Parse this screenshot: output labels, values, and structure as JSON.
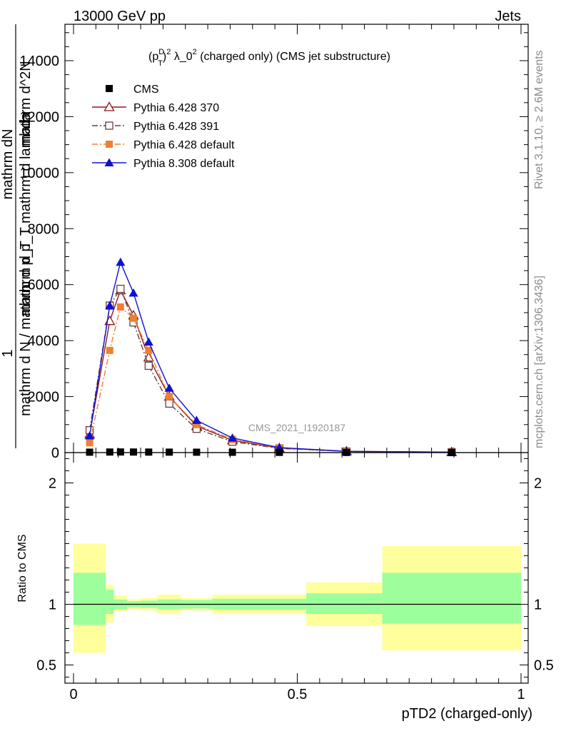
{
  "header": {
    "energy_label": "13000 GeV pp",
    "process_label": "Jets"
  },
  "side": {
    "rivet_label": "Rivet 3.1.10, ≥ 2.6M events",
    "source_label": "mcplots.cern.ch [arXiv:1306.3436]"
  },
  "watermark": "CMS_2021_I1920187",
  "chart_data": [
    {
      "type": "line",
      "title_parts": {
        "p": "(p",
        "sup_d": "D",
        "sub_t": "T",
        "close": ")",
        "sup_2": "2",
        "lambda": " λ_0",
        "sup_2b": "2",
        "rest": " (charged only) (CMS jet substructure)"
      },
      "ylabel_parts": {
        "one": "1",
        "frac1_num": "mathrm dN",
        "frac1_den": "mathrm d N / mathrm d p_T",
        "frac2_num": "mathrm d^2N",
        "frac2_den": "mathrm d p_T mathrm d lambda"
      },
      "xlim": [
        0,
        1
      ],
      "ylim": [
        0,
        15300
      ],
      "yticks": [
        {
          "value": 0,
          "label": "0"
        },
        {
          "value": 2000,
          "label": "2000"
        },
        {
          "value": 4000,
          "label": "4000"
        },
        {
          "value": 6000,
          "label": "6000"
        },
        {
          "value": 8000,
          "label": "8000"
        },
        {
          "value": 10000,
          "label": "10000"
        },
        {
          "value": 12000,
          "label": "12000"
        },
        {
          "value": 14000,
          "label": "14000"
        }
      ],
      "x": [
        0.036,
        0.081,
        0.105,
        0.134,
        0.168,
        0.214,
        0.275,
        0.355,
        0.46,
        0.61,
        0.845
      ],
      "series": [
        {
          "name": "CMS",
          "color": "#000000",
          "marker": "square-filled",
          "line": "none",
          "values": [
            15,
            20,
            22,
            20,
            18,
            16,
            14,
            12,
            8,
            5,
            3
          ]
        },
        {
          "name": "Pythia 6.428 370",
          "color": "#8b1a1a",
          "marker": "triangle-open",
          "line": "solid",
          "values": [
            650,
            4700,
            5800,
            4900,
            3400,
            2000,
            950,
            440,
            160,
            45,
            18
          ]
        },
        {
          "name": "Pythia 6.428 391",
          "color": "#6a3d3d",
          "marker": "square-open",
          "line": "dashdot",
          "values": [
            800,
            5250,
            5850,
            4650,
            3100,
            1750,
            850,
            390,
            150,
            40,
            15
          ]
        },
        {
          "name": "Pythia 6.428 default",
          "color": "#f08030",
          "marker": "square-filled",
          "line": "dashdot",
          "values": [
            350,
            3650,
            5200,
            4800,
            3650,
            2000,
            1000,
            470,
            170,
            45,
            15
          ]
        },
        {
          "name": "Pythia 8.308 default",
          "color": "#1010d0",
          "marker": "triangle-filled",
          "line": "solid",
          "values": [
            600,
            5250,
            6800,
            5700,
            3950,
            2300,
            1150,
            520,
            180,
            45,
            15
          ]
        }
      ]
    },
    {
      "type": "area",
      "ylabel": "Ratio to CMS",
      "xlabel": "pTD2 (charged-only)",
      "xlim": [
        0,
        1
      ],
      "ylim": [
        0.35,
        2.25
      ],
      "xticks": [
        {
          "value": 0,
          "label": "0"
        },
        {
          "value": 0.5,
          "label": "0.5"
        },
        {
          "value": 1,
          "label": "1"
        }
      ],
      "yticks": [
        {
          "value": 0.5,
          "label": "0.5"
        },
        {
          "value": 1,
          "label": "1"
        },
        {
          "value": 2,
          "label": "2"
        }
      ],
      "bins": [
        {
          "lo": 0.0,
          "hi": 0.072,
          "inner": [
            0.83,
            1.26
          ],
          "outer": [
            0.6,
            1.5
          ]
        },
        {
          "lo": 0.072,
          "hi": 0.09,
          "inner": [
            0.92,
            1.12
          ],
          "outer": [
            0.85,
            1.16
          ]
        },
        {
          "lo": 0.09,
          "hi": 0.12,
          "inner": [
            0.96,
            1.04
          ],
          "outer": [
            0.94,
            1.07
          ]
        },
        {
          "lo": 0.12,
          "hi": 0.149,
          "inner": [
            0.975,
            1.025
          ],
          "outer": [
            0.96,
            1.04
          ]
        },
        {
          "lo": 0.149,
          "hi": 0.188,
          "inner": [
            0.97,
            1.03
          ],
          "outer": [
            0.95,
            1.05
          ]
        },
        {
          "lo": 0.188,
          "hi": 0.24,
          "inner": [
            0.96,
            1.04
          ],
          "outer": [
            0.92,
            1.08
          ]
        },
        {
          "lo": 0.24,
          "hi": 0.31,
          "inner": [
            0.965,
            1.035
          ],
          "outer": [
            0.95,
            1.05
          ]
        },
        {
          "lo": 0.31,
          "hi": 0.41,
          "inner": [
            0.955,
            1.045
          ],
          "outer": [
            0.92,
            1.08
          ]
        },
        {
          "lo": 0.41,
          "hi": 0.52,
          "inner": [
            0.955,
            1.045
          ],
          "outer": [
            0.92,
            1.08
          ]
        },
        {
          "lo": 0.52,
          "hi": 0.69,
          "inner": [
            0.92,
            1.09
          ],
          "outer": [
            0.82,
            1.18
          ]
        },
        {
          "lo": 0.69,
          "hi": 1.0,
          "inner": [
            0.84,
            1.26
          ],
          "outer": [
            0.62,
            1.48
          ]
        }
      ],
      "reference": 1,
      "inner_color": "#9cff9c",
      "outer_color": "#ffff9c"
    }
  ]
}
